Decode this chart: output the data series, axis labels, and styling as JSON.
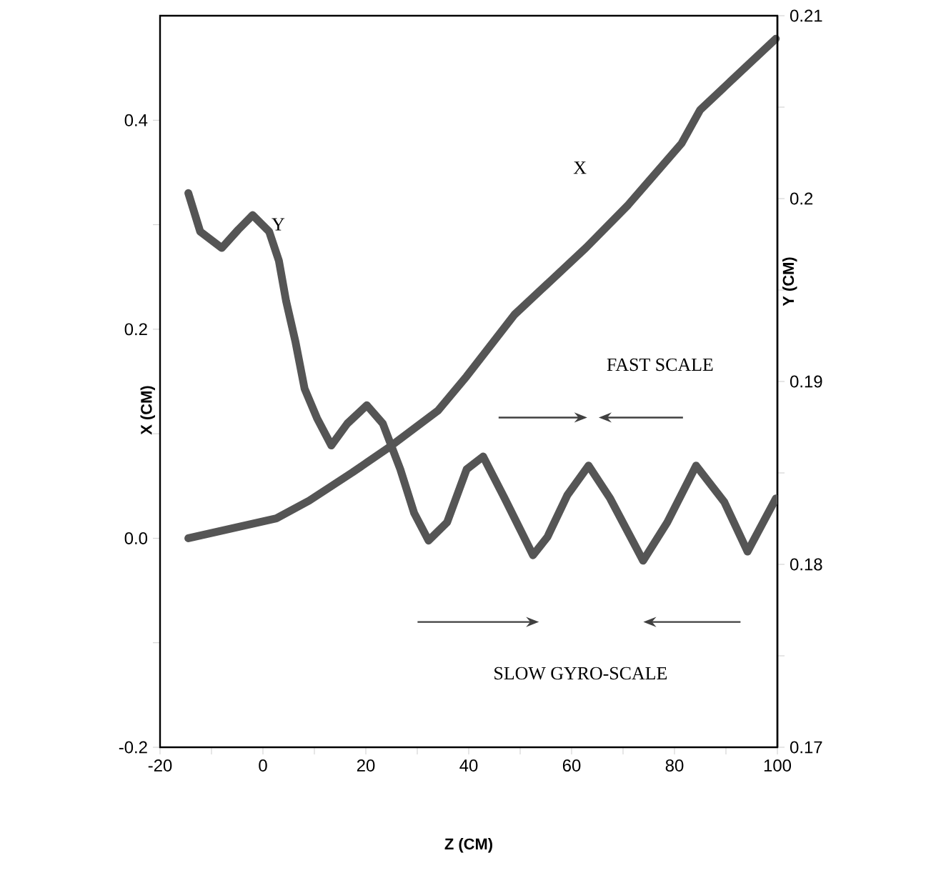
{
  "chart_data": {
    "type": "line",
    "xlabel": "Z  (CM)",
    "ylabel": "X  (CM)",
    "y2label": "Y  (CM)",
    "xlim": [
      -20,
      100
    ],
    "xticks": [
      -20,
      {
        "value": -10,
        "label": null
      },
      0,
      {
        "value": 10,
        "label": null
      },
      20,
      {
        "value": 30,
        "label": null
      },
      40,
      {
        "value": 50,
        "label": null
      },
      60,
      {
        "value": 70,
        "label": null
      },
      80,
      {
        "value": 90,
        "label": null
      },
      100
    ],
    "ylim": [
      -0.2,
      0.5
    ],
    "yticks": [
      -0.2,
      {
        "value": -0.1,
        "label": null
      },
      {
        "value": 0,
        "label": "0.0"
      },
      {
        "value": 0.1,
        "label": null
      },
      0.2,
      {
        "value": 0.3,
        "label": null
      },
      0.4
    ],
    "y2lim": [
      0.17,
      0.21
    ],
    "y2ticks": [
      0.17,
      {
        "value": 0.175,
        "label": null
      },
      0.18,
      {
        "value": 0.185,
        "label": null
      },
      0.19,
      {
        "value": 0.195,
        "label": null
      },
      0.2,
      {
        "value": 0.205,
        "label": null
      },
      0.21
    ],
    "series": [
      {
        "name": "X",
        "color": "#555555",
        "x": [
          -14.5,
          2.6,
          9,
          17.4,
          24.8,
          34,
          39.6,
          48.9,
          62.8,
          71,
          81.4,
          85,
          99.7
        ],
        "values": [
          0.0,
          0.019,
          0.036,
          0.063,
          0.088,
          0.122,
          0.155,
          0.214,
          0.278,
          0.319,
          0.378,
          0.41,
          0.478
        ]
      },
      {
        "name": "Y",
        "color": "#555555",
        "axis": "y2",
        "x": [
          -14.5,
          -12.2,
          -8,
          -4.8,
          -2,
          1.2,
          3.1,
          4.5,
          6.3,
          8.1,
          10.5,
          13.3,
          16.4,
          20.2,
          23.3,
          26.7,
          29.4,
          32.2,
          35.8,
          39.6,
          42.8,
          47,
          52.5,
          55.3,
          59.2,
          63.3,
          67.5,
          73.9,
          78.6,
          84.2,
          89.7,
          94.2,
          99.7
        ],
        "values": [
          0.2003,
          0.1982,
          0.1973,
          0.1983,
          0.1991,
          0.1982,
          0.1966,
          0.1944,
          0.1922,
          0.1896,
          0.188,
          0.1865,
          0.1877,
          0.1887,
          0.1877,
          0.1852,
          0.1828,
          0.1813,
          0.1823,
          0.1852,
          0.1859,
          0.1836,
          0.1805,
          0.1815,
          0.1838,
          0.1854,
          0.1836,
          0.1802,
          0.1823,
          0.1854,
          0.1834,
          0.1807,
          0.1836
        ]
      }
    ],
    "annotations": [
      "FAST  SCALE",
      "SLOW  GYRO-SCALE"
    ]
  }
}
